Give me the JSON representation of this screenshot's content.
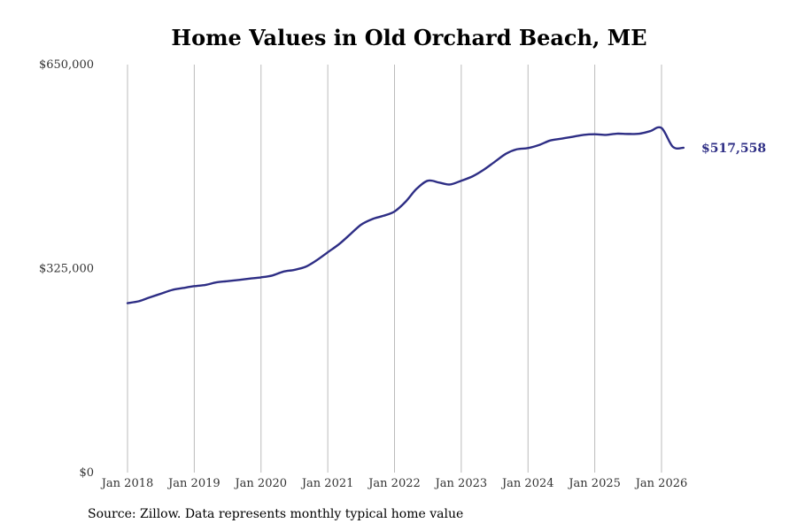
{
  "chart_data": {
    "type": "line",
    "title": "Home Values in Old Orchard Beach, ME",
    "xlabel": "",
    "ylabel": "",
    "ylim": [
      0,
      650000
    ],
    "y_ticks": [
      {
        "value": 650000,
        "label": "$650,000"
      },
      {
        "value": 325000,
        "label": "$325,000"
      },
      {
        "value": 0,
        "label": "$0"
      }
    ],
    "x_ticks": [
      {
        "value": 2018,
        "label": "Jan 2018"
      },
      {
        "value": 2019,
        "label": "Jan 2019"
      },
      {
        "value": 2020,
        "label": "Jan 2020"
      },
      {
        "value": 2021,
        "label": "Jan 2021"
      },
      {
        "value": 2022,
        "label": "Jan 2022"
      },
      {
        "value": 2023,
        "label": "Jan 2023"
      },
      {
        "value": 2024,
        "label": "Jan 2024"
      },
      {
        "value": 2025,
        "label": "Jan 2025"
      },
      {
        "value": 2026,
        "label": "Jan 2026"
      }
    ],
    "xlim": [
      2018,
      2026.42
    ],
    "grid": "vertical",
    "line_color": "#2e2e85",
    "grid_color": "#bbbbbb",
    "series": [
      {
        "name": "",
        "points": [
          [
            2018.0,
            270000
          ],
          [
            2018.17,
            273000
          ],
          [
            2018.33,
            279000
          ],
          [
            2018.5,
            285000
          ],
          [
            2018.67,
            291000
          ],
          [
            2018.83,
            294000
          ],
          [
            2019.0,
            297000
          ],
          [
            2019.17,
            299000
          ],
          [
            2019.33,
            303000
          ],
          [
            2019.5,
            305000
          ],
          [
            2019.67,
            307000
          ],
          [
            2019.83,
            309000
          ],
          [
            2020.0,
            311000
          ],
          [
            2020.17,
            314000
          ],
          [
            2020.33,
            320000
          ],
          [
            2020.5,
            323000
          ],
          [
            2020.67,
            328000
          ],
          [
            2020.83,
            338000
          ],
          [
            2021.0,
            351000
          ],
          [
            2021.17,
            364000
          ],
          [
            2021.33,
            379000
          ],
          [
            2021.5,
            395000
          ],
          [
            2021.67,
            404000
          ],
          [
            2021.83,
            409000
          ],
          [
            2022.0,
            416000
          ],
          [
            2022.17,
            432000
          ],
          [
            2022.33,
            452000
          ],
          [
            2022.5,
            465000
          ],
          [
            2022.67,
            462000
          ],
          [
            2022.83,
            459000
          ],
          [
            2023.0,
            465000
          ],
          [
            2023.17,
            472000
          ],
          [
            2023.33,
            482000
          ],
          [
            2023.5,
            495000
          ],
          [
            2023.67,
            508000
          ],
          [
            2023.83,
            515000
          ],
          [
            2024.0,
            517000
          ],
          [
            2024.17,
            522000
          ],
          [
            2024.33,
            529000
          ],
          [
            2024.5,
            532000
          ],
          [
            2024.67,
            535000
          ],
          [
            2024.83,
            538000
          ],
          [
            2025.0,
            539000
          ],
          [
            2025.17,
            538000
          ],
          [
            2025.33,
            540000
          ],
          [
            2025.5,
            539500
          ],
          [
            2025.67,
            540000
          ],
          [
            2025.83,
            544000
          ],
          [
            2026.0,
            549000
          ],
          [
            2026.17,
            519000
          ],
          [
            2026.33,
            517558
          ]
        ]
      }
    ],
    "end_label": "$517,558"
  },
  "source_note": "Source: Zillow. Data represents monthly typical home value"
}
